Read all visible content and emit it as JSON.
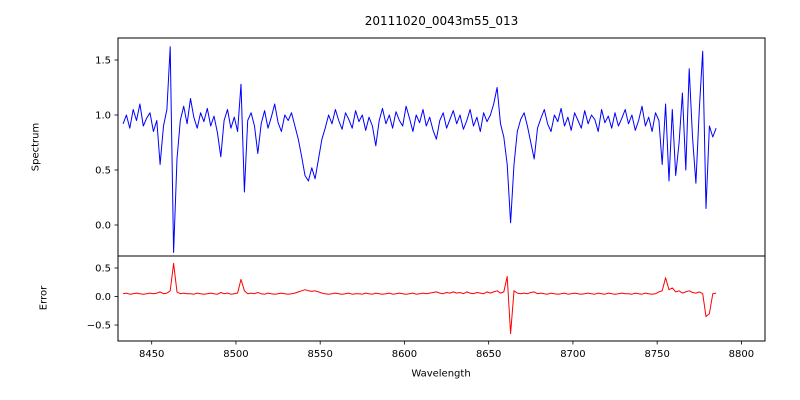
{
  "colors": {
    "background": "#ffffff",
    "axes": "#000000",
    "text": "#000000"
  },
  "chart_data": {
    "type": "line",
    "title": "20111020_0043m55_013",
    "xlabel": "Wavelength",
    "xlim": [
      8430,
      8814
    ],
    "x_ticks": [
      8450,
      8500,
      8550,
      8600,
      8650,
      8700,
      8750,
      8800
    ],
    "x_start": 8433,
    "x_step": 2,
    "grid": false,
    "legend": "none",
    "panels": [
      {
        "name": "spectrum",
        "ylabel": "Spectrum",
        "color": "#0000ff",
        "ylim": [
          -0.282,
          1.7
        ],
        "y_ticks": [
          0.0,
          0.5,
          1.0,
          1.5
        ],
        "values": [
          0.92,
          1.0,
          0.88,
          1.05,
          0.95,
          1.1,
          0.9,
          0.97,
          1.02,
          0.85,
          0.95,
          0.55,
          0.9,
          1.05,
          1.62,
          -0.25,
          0.6,
          0.95,
          1.08,
          0.92,
          1.15,
          0.98,
          0.88,
          1.02,
          0.94,
          1.06,
          0.9,
          0.99,
          0.84,
          0.62,
          0.95,
          1.05,
          0.88,
          0.98,
          0.85,
          1.28,
          0.3,
          0.95,
          1.02,
          0.9,
          0.65,
          0.92,
          1.04,
          0.88,
          0.98,
          1.1,
          0.93,
          0.85,
          1.0,
          0.95,
          1.02,
          0.9,
          0.78,
          0.62,
          0.45,
          0.4,
          0.52,
          0.42,
          0.6,
          0.78,
          0.88,
          1.0,
          0.92,
          1.05,
          0.95,
          0.87,
          1.02,
          0.96,
          0.88,
          1.04,
          0.94,
          1.0,
          0.86,
          0.98,
          0.9,
          0.72,
          0.95,
          1.06,
          0.92,
          1.0,
          0.88,
          1.03,
          0.95,
          0.9,
          1.08,
          0.97,
          0.85,
          1.0,
          0.93,
          1.05,
          0.9,
          0.98,
          0.86,
          0.78,
          0.95,
          1.02,
          0.88,
          0.96,
          1.04,
          0.92,
          1.0,
          0.87,
          0.95,
          1.05,
          0.9,
          0.98,
          0.85,
          1.02,
          0.94,
          1.0,
          1.1,
          1.25,
          0.92,
          0.8,
          0.55,
          0.02,
          0.55,
          0.85,
          0.96,
          1.02,
          0.9,
          0.75,
          0.6,
          0.88,
          0.97,
          1.05,
          0.92,
          0.85,
          1.0,
          0.94,
          1.06,
          0.9,
          0.98,
          0.86,
          1.02,
          0.95,
          0.88,
          1.04,
          0.92,
          1.0,
          0.96,
          0.85,
          1.05,
          0.93,
          0.99,
          0.88,
          1.02,
          0.9,
          0.97,
          1.05,
          0.92,
          1.0,
          0.86,
          0.95,
          1.08,
          0.9,
          0.98,
          0.85,
          1.02,
          0.95,
          0.55,
          1.1,
          0.4,
          1.05,
          0.45,
          0.75,
          1.2,
          0.5,
          1.42,
          0.8,
          0.38,
          1.05,
          1.58,
          0.15,
          0.9,
          0.8,
          0.88
        ]
      },
      {
        "name": "error",
        "ylabel": "Error",
        "color": "#ff0000",
        "ylim": [
          -0.78,
          0.71
        ],
        "y_ticks": [
          -0.5,
          0.0,
          0.5
        ],
        "values": [
          0.05,
          0.06,
          0.04,
          0.05,
          0.06,
          0.05,
          0.04,
          0.05,
          0.06,
          0.05,
          0.06,
          0.08,
          0.05,
          0.06,
          0.1,
          0.58,
          0.08,
          0.05,
          0.06,
          0.05,
          0.05,
          0.04,
          0.06,
          0.05,
          0.04,
          0.05,
          0.06,
          0.05,
          0.04,
          0.07,
          0.05,
          0.06,
          0.04,
          0.05,
          0.06,
          0.3,
          0.1,
          0.05,
          0.06,
          0.05,
          0.07,
          0.05,
          0.04,
          0.06,
          0.05,
          0.04,
          0.05,
          0.06,
          0.05,
          0.04,
          0.05,
          0.06,
          0.08,
          0.1,
          0.12,
          0.1,
          0.09,
          0.1,
          0.08,
          0.06,
          0.05,
          0.04,
          0.05,
          0.06,
          0.05,
          0.04,
          0.05,
          0.06,
          0.04,
          0.05,
          0.05,
          0.04,
          0.06,
          0.05,
          0.04,
          0.06,
          0.05,
          0.04,
          0.05,
          0.06,
          0.04,
          0.05,
          0.06,
          0.05,
          0.04,
          0.05,
          0.06,
          0.04,
          0.05,
          0.06,
          0.05,
          0.06,
          0.07,
          0.08,
          0.06,
          0.05,
          0.07,
          0.06,
          0.08,
          0.06,
          0.07,
          0.05,
          0.08,
          0.06,
          0.05,
          0.07,
          0.06,
          0.05,
          0.08,
          0.06,
          0.08,
          0.1,
          0.06,
          0.08,
          0.35,
          -0.65,
          0.1,
          0.06,
          0.05,
          0.06,
          0.05,
          0.07,
          0.08,
          0.05,
          0.06,
          0.05,
          0.04,
          0.06,
          0.05,
          0.04,
          0.05,
          0.06,
          0.04,
          0.05,
          0.06,
          0.05,
          0.04,
          0.05,
          0.06,
          0.05,
          0.04,
          0.06,
          0.05,
          0.04,
          0.06,
          0.05,
          0.04,
          0.05,
          0.06,
          0.05,
          0.05,
          0.04,
          0.06,
          0.05,
          0.04,
          0.06,
          0.05,
          0.04,
          0.05,
          0.08,
          0.1,
          0.33,
          0.12,
          0.15,
          0.08,
          0.1,
          0.06,
          0.08,
          0.1,
          0.07,
          0.06,
          0.08,
          0.05,
          -0.35,
          -0.3,
          0.05,
          0.06
        ]
      }
    ]
  }
}
